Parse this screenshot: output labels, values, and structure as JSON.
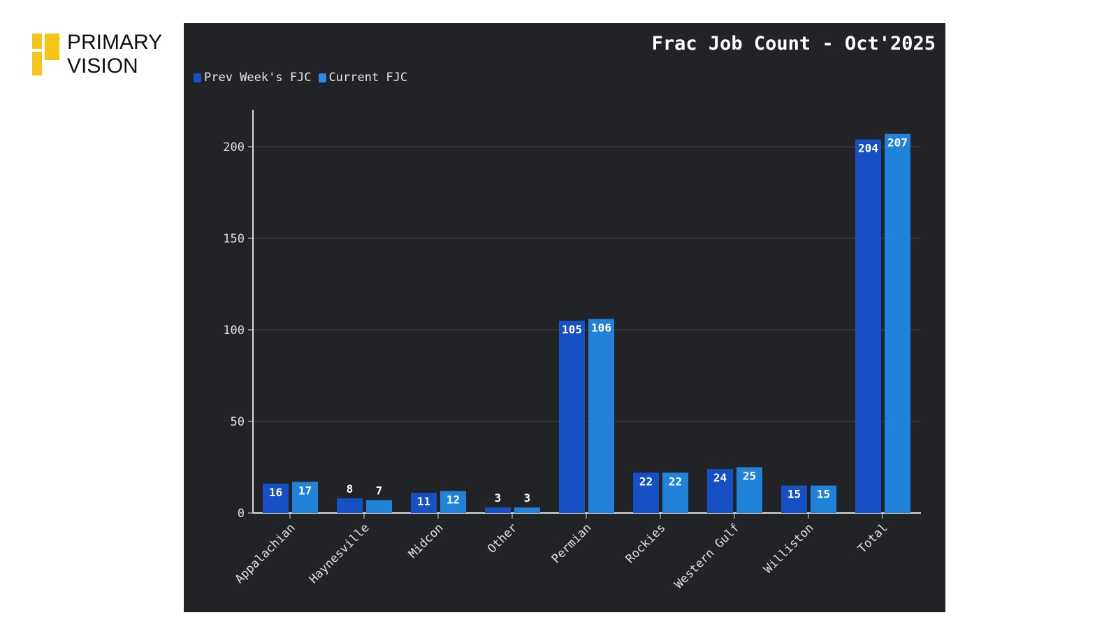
{
  "logo": {
    "line1": "PRIMARY",
    "line2": "VISION",
    "color": "#f5c518"
  },
  "chart_data": {
    "type": "bar",
    "title": "Frac Job Count - Oct'2025",
    "categories": [
      "Appalachian",
      "Haynesville",
      "Midcon",
      "Other",
      "Permian",
      "Rockies",
      "Western Gulf",
      "Williston",
      "Total"
    ],
    "series": [
      {
        "name": "Prev Week's FJC",
        "color": "#1650c4",
        "values": [
          16,
          8,
          11,
          3,
          105,
          22,
          24,
          15,
          204
        ]
      },
      {
        "name": "Current FJC",
        "color": "#2182da",
        "values": [
          17,
          7,
          12,
          3,
          106,
          22,
          25,
          15,
          207
        ]
      }
    ],
    "yticks": [
      0,
      50,
      100,
      150,
      200
    ],
    "ylim": [
      0,
      220
    ],
    "xlabel": "",
    "ylabel": "",
    "grid": true,
    "legend": "top-left"
  }
}
